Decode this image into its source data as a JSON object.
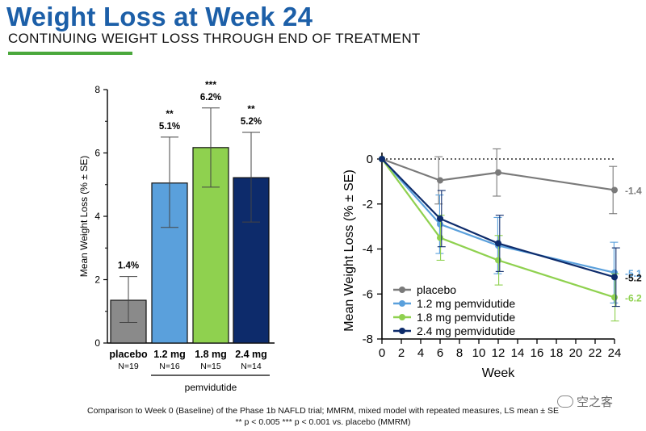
{
  "header": {
    "title": "Weight Loss at Week 24",
    "subtitle": "CONTINUING WEIGHT LOSS THROUGH END OF TREATMENT",
    "accent_color": "#4aa83c",
    "title_color": "#1c5fa8"
  },
  "chart_data": [
    {
      "type": "bar",
      "ylabel": "Mean Weight Loss (% ± SE)",
      "ylim": [
        0,
        8
      ],
      "yticks": [
        "0",
        "2",
        "4",
        "6",
        "8"
      ],
      "group_label": "pemvidutide",
      "categories": [
        {
          "name": "placebo",
          "n": "N=19",
          "value": 1.35,
          "label": "1.4%",
          "sig": "",
          "se_low": 0.65,
          "se_high": 2.1,
          "color": "#8a8a8a"
        },
        {
          "name": "1.2 mg",
          "n": "N=16",
          "value": 5.05,
          "label": "5.1%",
          "sig": "**",
          "se_low": 3.65,
          "se_high": 6.5,
          "color": "#5aa0dc"
        },
        {
          "name": "1.8 mg",
          "n": "N=15",
          "value": 6.17,
          "label": "6.2%",
          "sig": "***",
          "se_low": 4.92,
          "se_high": 7.42,
          "color": "#8fd14f"
        },
        {
          "name": "2.4 mg",
          "n": "N=14",
          "value": 5.22,
          "label": "5.2%",
          "sig": "**",
          "se_low": 3.82,
          "se_high": 6.65,
          "color": "#0d2b6b"
        }
      ]
    },
    {
      "type": "line",
      "xlabel": "Week",
      "ylabel": "Mean Weight Loss (% ± SE)",
      "xlim": [
        0,
        24
      ],
      "ylim": [
        -8,
        0
      ],
      "xticks": [
        "0",
        "2",
        "4",
        "6",
        "8",
        "10",
        "12",
        "14",
        "16",
        "18",
        "20",
        "22",
        "24"
      ],
      "yticks": [
        "0",
        "-2",
        "-4",
        "-6",
        "-8"
      ],
      "x": [
        0,
        6,
        12,
        24
      ],
      "series": [
        {
          "name": "placebo",
          "color": "#7a7a7a",
          "values": [
            0,
            -0.95,
            -0.6,
            -1.38
          ],
          "se": [
            0,
            1.05,
            1.05,
            1.05
          ],
          "end_label": "-1.4",
          "end_bold": false
        },
        {
          "name": "1.2 mg pemvidutide",
          "color": "#5aa0dc",
          "values": [
            0,
            -2.9,
            -3.85,
            -5.05
          ],
          "se": [
            0,
            1.3,
            1.25,
            1.35
          ],
          "end_label": "-5.1",
          "end_bold": false
        },
        {
          "name": "1.8 mg pemvidutide",
          "color": "#8fd14f",
          "values": [
            0,
            -3.5,
            -4.5,
            -6.15
          ],
          "se": [
            0,
            1.0,
            1.1,
            1.05
          ],
          "end_label": "-6.2",
          "end_bold": false
        },
        {
          "name": "2.4 mg pemvidutide",
          "color": "#0d2b6b",
          "values": [
            0,
            -2.65,
            -3.75,
            -5.25
          ],
          "se": [
            0,
            1.25,
            1.25,
            1.3
          ],
          "end_label": "-5.2",
          "end_bold": true
        }
      ]
    }
  ],
  "footer": {
    "line1": "Comparison to Week 0 (Baseline) of the Phase 1b NAFLD trial; MMRM, mixed model with repeated measures, LS mean ± SE",
    "line2": "** p  < 0.005  *** p  < 0.001 vs. placebo (MMRM)"
  },
  "watermark": {
    "text": "空之客",
    "icon": "wechat-icon"
  }
}
